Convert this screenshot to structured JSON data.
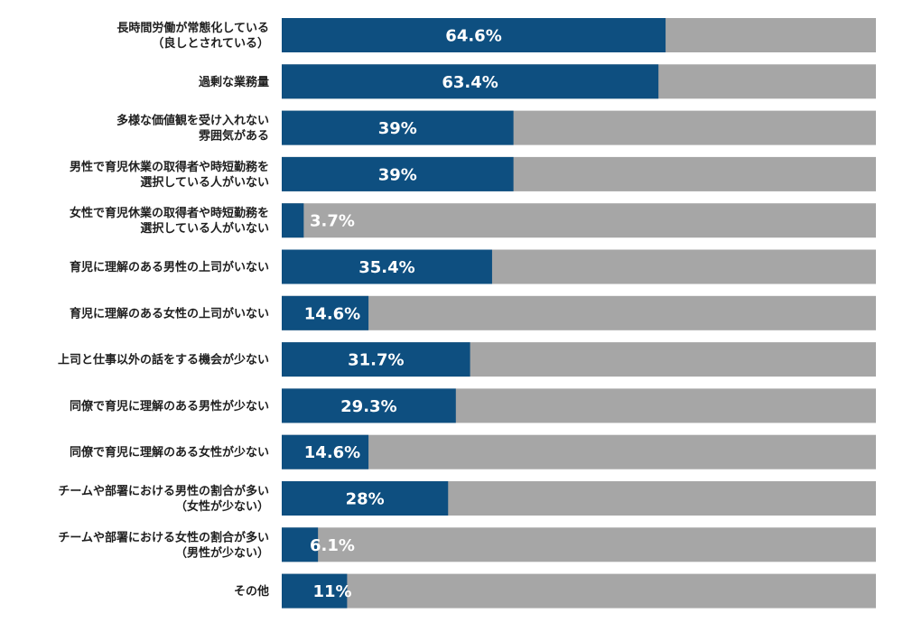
{
  "chart_data": {
    "type": "bar",
    "orientation": "horizontal",
    "stacked_background": true,
    "xlim": [
      0,
      100
    ],
    "bar_color": "#0e4f80",
    "track_color": "#a6a6a6",
    "categories": [
      [
        "長時間労働が常態化している",
        "（良しとされている）"
      ],
      [
        "過剰な業務量"
      ],
      [
        "多様な価値観を受け入れない",
        "雰囲気がある"
      ],
      [
        "男性で育児休業の取得者や時短勤務を",
        "選択している人がいない"
      ],
      [
        "女性で育児休業の取得者や時短勤務を",
        "選択している人がいない"
      ],
      [
        "育児に理解のある男性の上司がいない"
      ],
      [
        "育児に理解のある女性の上司がいない"
      ],
      [
        "上司と仕事以外の話をする機会が少ない"
      ],
      [
        "同僚で育児に理解のある男性が少ない"
      ],
      [
        "同僚で育児に理解のある女性が少ない"
      ],
      [
        "チームや部署における男性の割合が多い",
        "（女性が少ない）"
      ],
      [
        "チームや部署における女性の割合が多い",
        "（男性が少ない）"
      ],
      [
        "その他"
      ]
    ],
    "values": [
      64.6,
      63.4,
      39,
      39,
      3.7,
      35.4,
      14.6,
      31.7,
      29.3,
      14.6,
      28,
      6.1,
      11
    ],
    "value_labels": [
      "64.6%",
      "63.4%",
      "39%",
      "39%",
      "3.7%",
      "35.4%",
      "14.6%",
      "31.7%",
      "29.3%",
      "14.6%",
      "28%",
      "6.1%",
      "11%"
    ]
  }
}
